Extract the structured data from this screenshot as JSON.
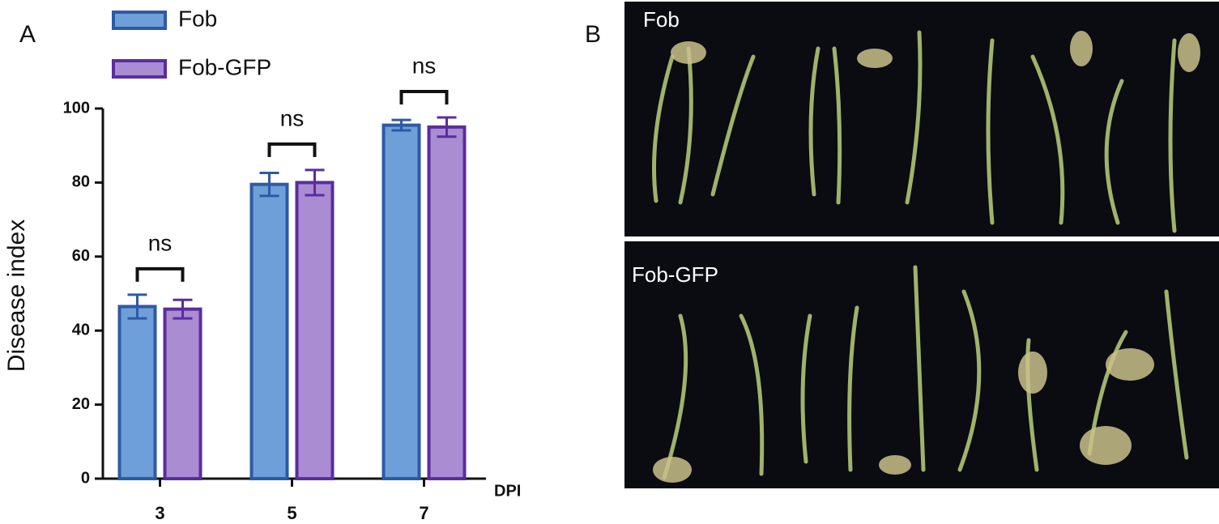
{
  "chart_data": {
    "type": "bar",
    "panel_label": "A",
    "categories": [
      "3",
      "5",
      "7"
    ],
    "x_label": "DPI",
    "y_label": "Disease index",
    "series": [
      {
        "name": "Fob",
        "color": "#6f9fd8",
        "edge_color": "#2d5aa6",
        "values": [
          46.5,
          79.5,
          95.5
        ],
        "errors": [
          3.2,
          3.1,
          1.4
        ]
      },
      {
        "name": "Fob-GFP",
        "color": "#a98cd2",
        "edge_color": "#5a2d9e",
        "values": [
          45.8,
          80,
          95
        ],
        "errors": [
          2.5,
          3.4,
          2.6
        ]
      }
    ],
    "annotations": [
      "ns",
      "ns",
      "ns"
    ],
    "ylim": [
      0,
      100
    ],
    "yticks": [
      0,
      20,
      40,
      60,
      80,
      100
    ]
  },
  "panel_b": {
    "label": "B",
    "photos": [
      "Fob",
      "Fob-GFP"
    ]
  }
}
